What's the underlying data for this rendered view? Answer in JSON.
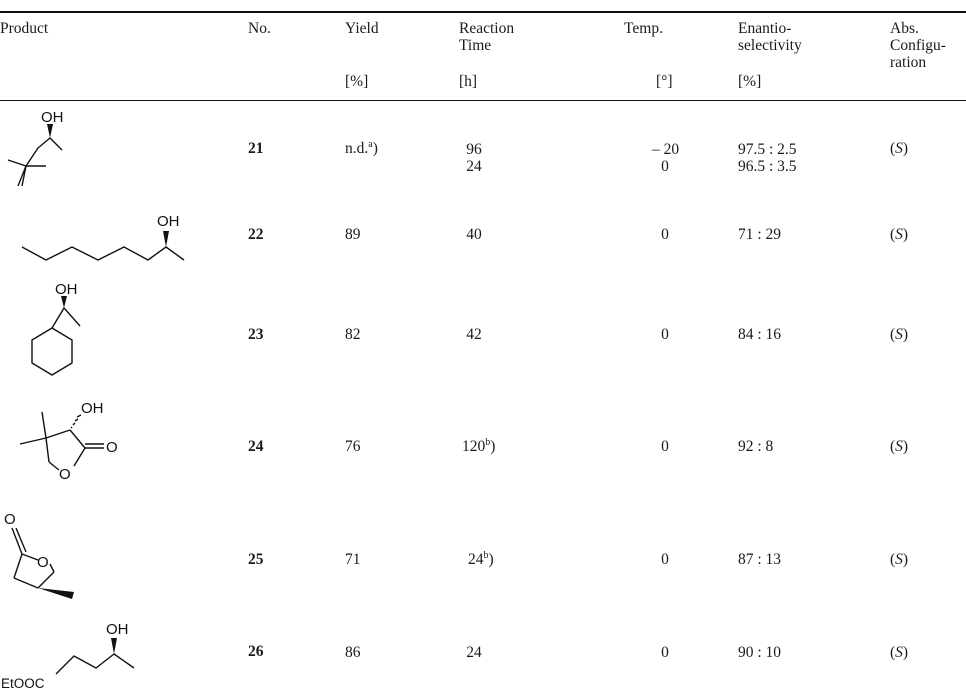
{
  "headers": {
    "product": "Product",
    "no": "No.",
    "yield": [
      "Yield",
      "[%]"
    ],
    "time": [
      "Reaction",
      "Time",
      "[h]"
    ],
    "temp": [
      "Temp.",
      "[°]"
    ],
    "ee": [
      "Enantio-",
      "selectivity",
      "[%]"
    ],
    "abs": [
      "Abs.",
      "Configu-",
      "ration"
    ]
  },
  "atoms": {
    "oh": "OH",
    "o": "O",
    "ester": "EtOOC"
  },
  "rows": [
    {
      "no": "21",
      "yield": "n.d.",
      "yield_sup": "a",
      "time": [
        "96",
        "24"
      ],
      "time_sup": "",
      "temp": [
        "– 20",
        "0"
      ],
      "ee": [
        "97.5 : 2.5",
        "96.5 : 3.5"
      ],
      "abs": "S"
    },
    {
      "no": "22",
      "yield": "89",
      "yield_sup": "",
      "time": [
        "40"
      ],
      "time_sup": "",
      "temp": [
        "0"
      ],
      "ee": [
        "71 : 29"
      ],
      "abs": "S"
    },
    {
      "no": "23",
      "yield": "82",
      "yield_sup": "",
      "time": [
        "42"
      ],
      "time_sup": "",
      "temp": [
        "0"
      ],
      "ee": [
        "84 : 16"
      ],
      "abs": "S"
    },
    {
      "no": "24",
      "yield": "76",
      "yield_sup": "",
      "time": [
        "120"
      ],
      "time_sup": "b",
      "temp": [
        "0"
      ],
      "ee": [
        "92 : 8"
      ],
      "abs": "S"
    },
    {
      "no": "25",
      "yield": "71",
      "yield_sup": "",
      "time": [
        "24"
      ],
      "time_sup": "b",
      "temp": [
        "0"
      ],
      "ee": [
        "87 : 13"
      ],
      "abs": "S"
    },
    {
      "no": "26",
      "yield": "86",
      "yield_sup": "",
      "time": [
        "24"
      ],
      "time_sup": "",
      "temp": [
        "0"
      ],
      "ee": [
        "90 : 10"
      ],
      "abs": "S"
    }
  ]
}
